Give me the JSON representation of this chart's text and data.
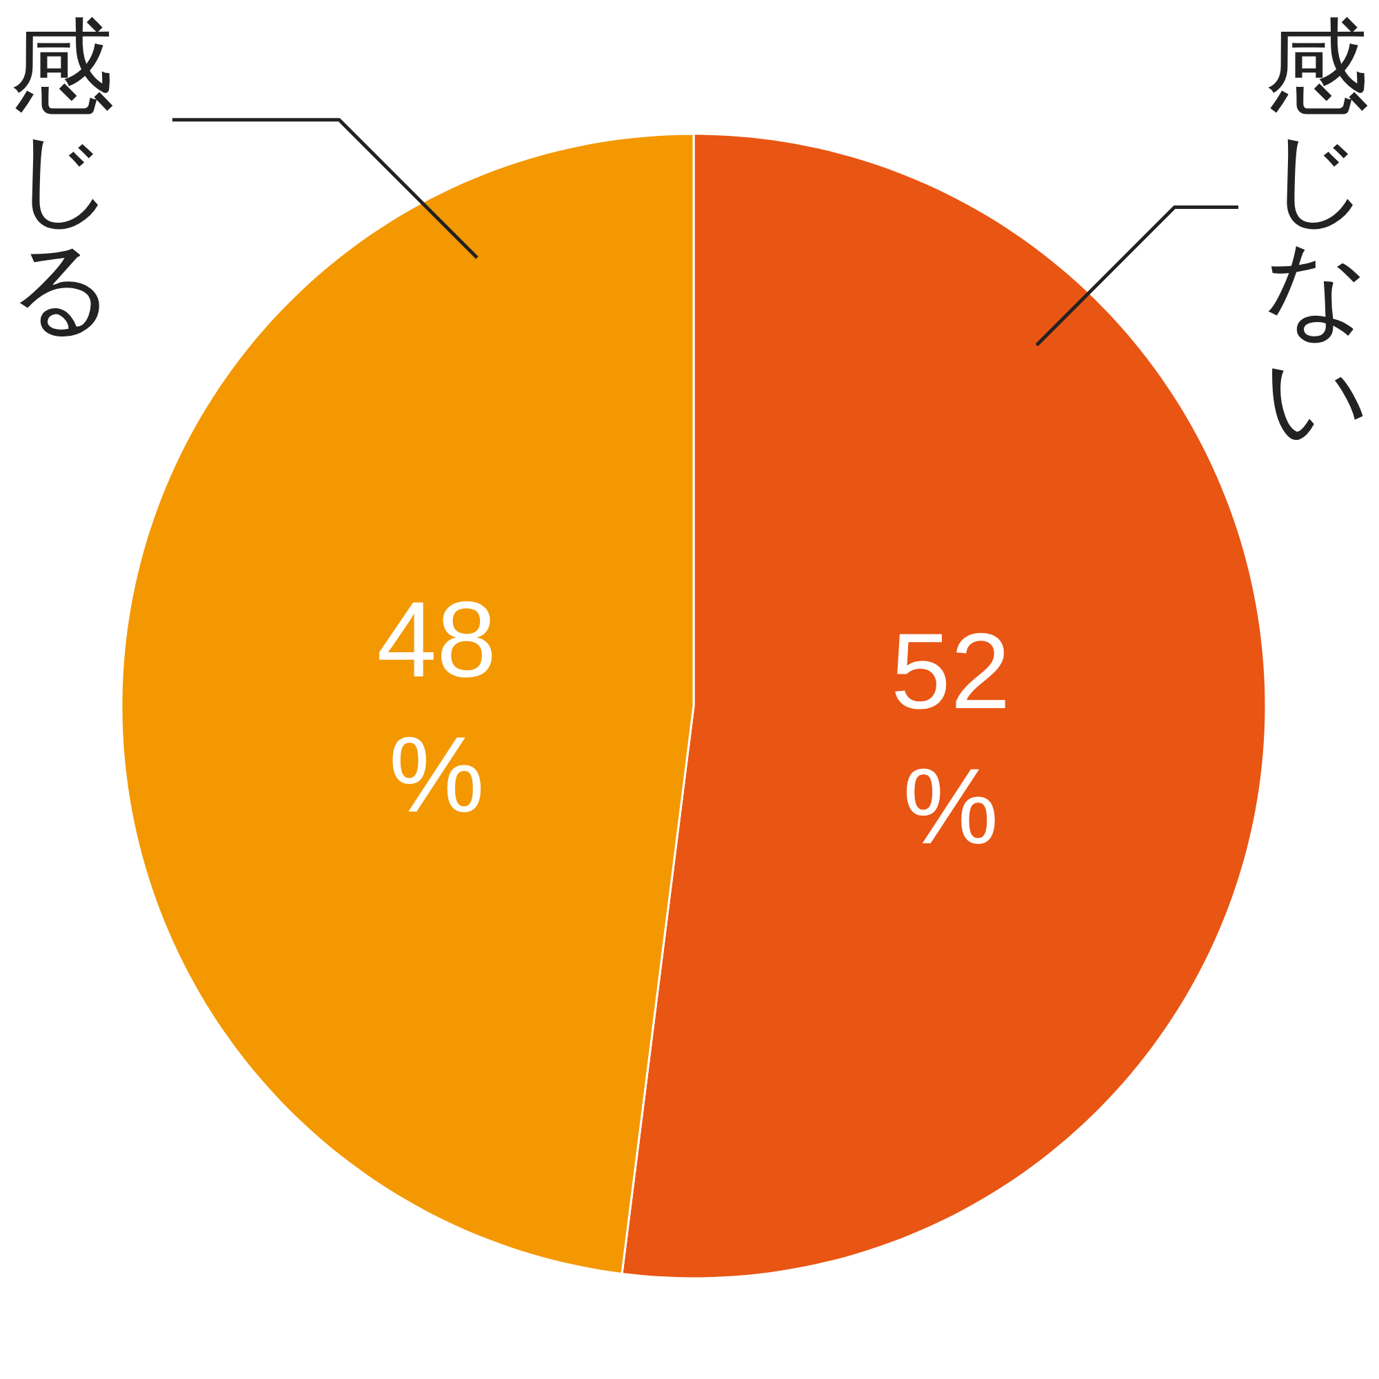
{
  "chart_data": {
    "type": "pie",
    "categories": [
      "感じない",
      "感じる"
    ],
    "values": [
      52,
      48
    ],
    "colors": [
      "#e95513",
      "#f39800"
    ],
    "value_labels": [
      "52%",
      "48%"
    ]
  }
}
